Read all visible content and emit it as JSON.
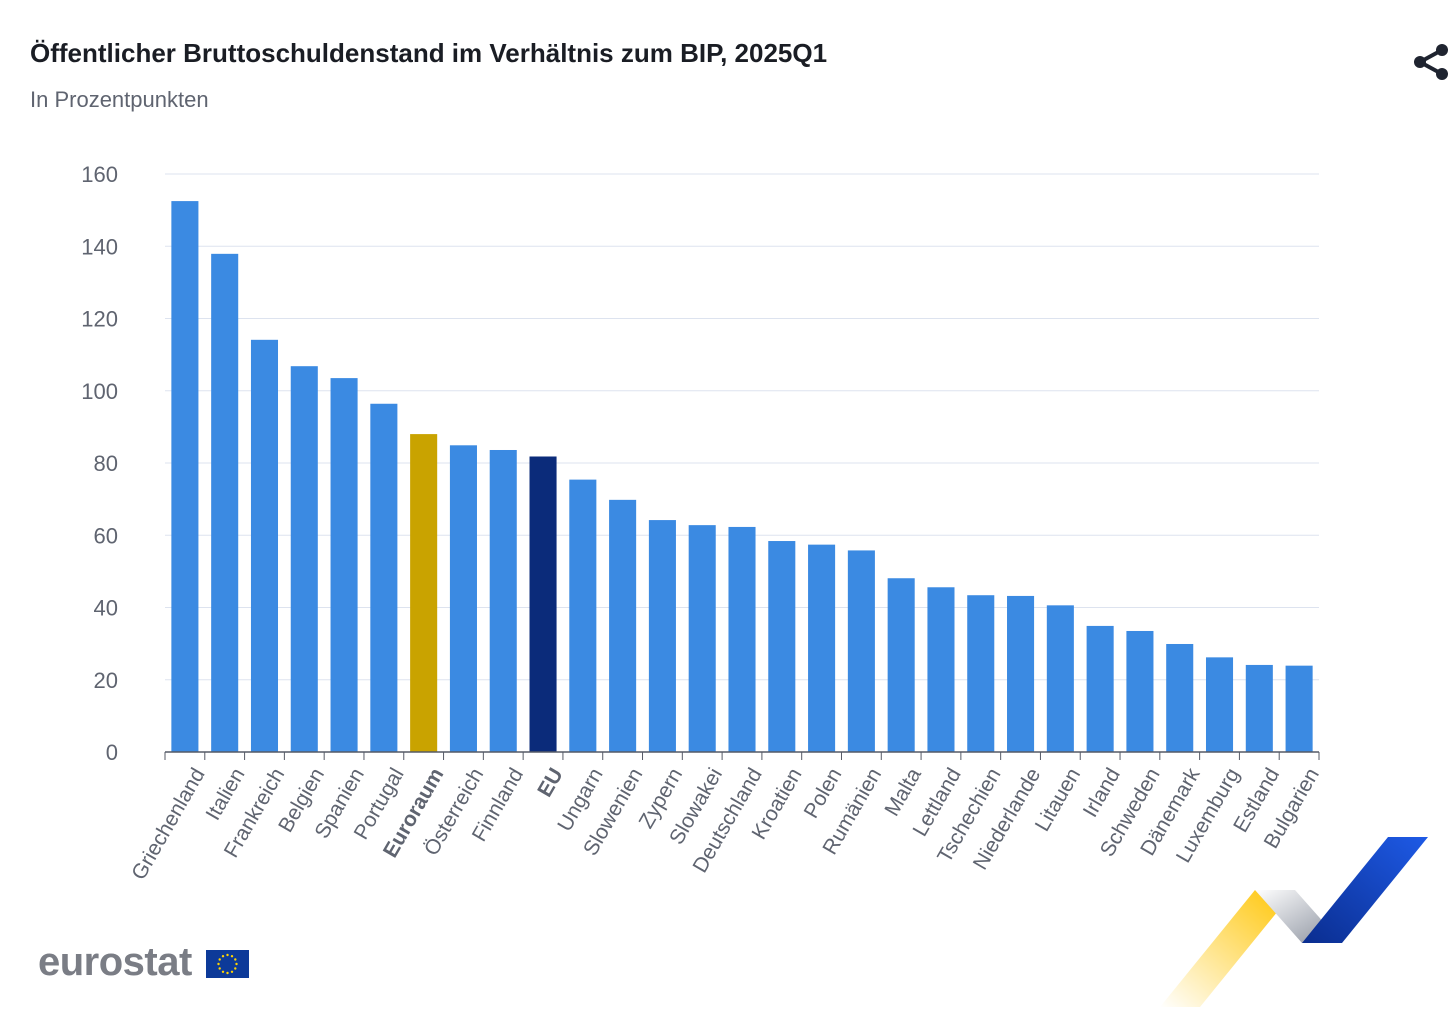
{
  "header": {
    "title": "Öffentlicher Bruttoschuldenstand im Verhältnis zum BIP, 2025Q1",
    "subtitle": "In Prozentpunkten",
    "share_icon": "share-icon"
  },
  "footer": {
    "logo_text": "eurostat",
    "flag_icon": "eu-flag-icon"
  },
  "colors": {
    "bar_default": "#3b8ae2",
    "bar_euroraum": "#c9a300",
    "bar_eu": "#0b2b7a",
    "grid": "#dde3ef",
    "axis_text": "#5f6470"
  },
  "chart_data": {
    "type": "bar",
    "title": "Öffentlicher Bruttoschuldenstand im Verhältnis zum BIP, 2025Q1",
    "subtitle": "In Prozentpunkten",
    "xlabel": "",
    "ylabel": "",
    "ylim": [
      0,
      160
    ],
    "yticks": [
      0,
      20,
      40,
      60,
      80,
      100,
      120,
      140,
      160
    ],
    "grid": true,
    "highlighted": [
      "Euroraum",
      "EU"
    ],
    "categories": [
      "Griechenland",
      "Italien",
      "Frankreich",
      "Belgien",
      "Spanien",
      "Portugal",
      "Euroraum",
      "Österreich",
      "Finnland",
      "EU",
      "Ungarn",
      "Slowenien",
      "Zypern",
      "Slowakei",
      "Deutschland",
      "Kroatien",
      "Polen",
      "Rumänien",
      "Malta",
      "Lettland",
      "Tschechien",
      "Niederlande",
      "Litauen",
      "Irland",
      "Schweden",
      "Dänemark",
      "Luxemburg",
      "Estland",
      "Bulgarien"
    ],
    "values": [
      152.5,
      137.9,
      114.1,
      106.8,
      103.5,
      96.4,
      88.0,
      84.9,
      83.6,
      81.8,
      75.4,
      69.8,
      64.2,
      62.8,
      62.3,
      58.4,
      57.4,
      55.8,
      48.1,
      45.6,
      43.4,
      43.2,
      40.6,
      34.9,
      33.5,
      29.9,
      26.2,
      24.1,
      23.9
    ]
  }
}
